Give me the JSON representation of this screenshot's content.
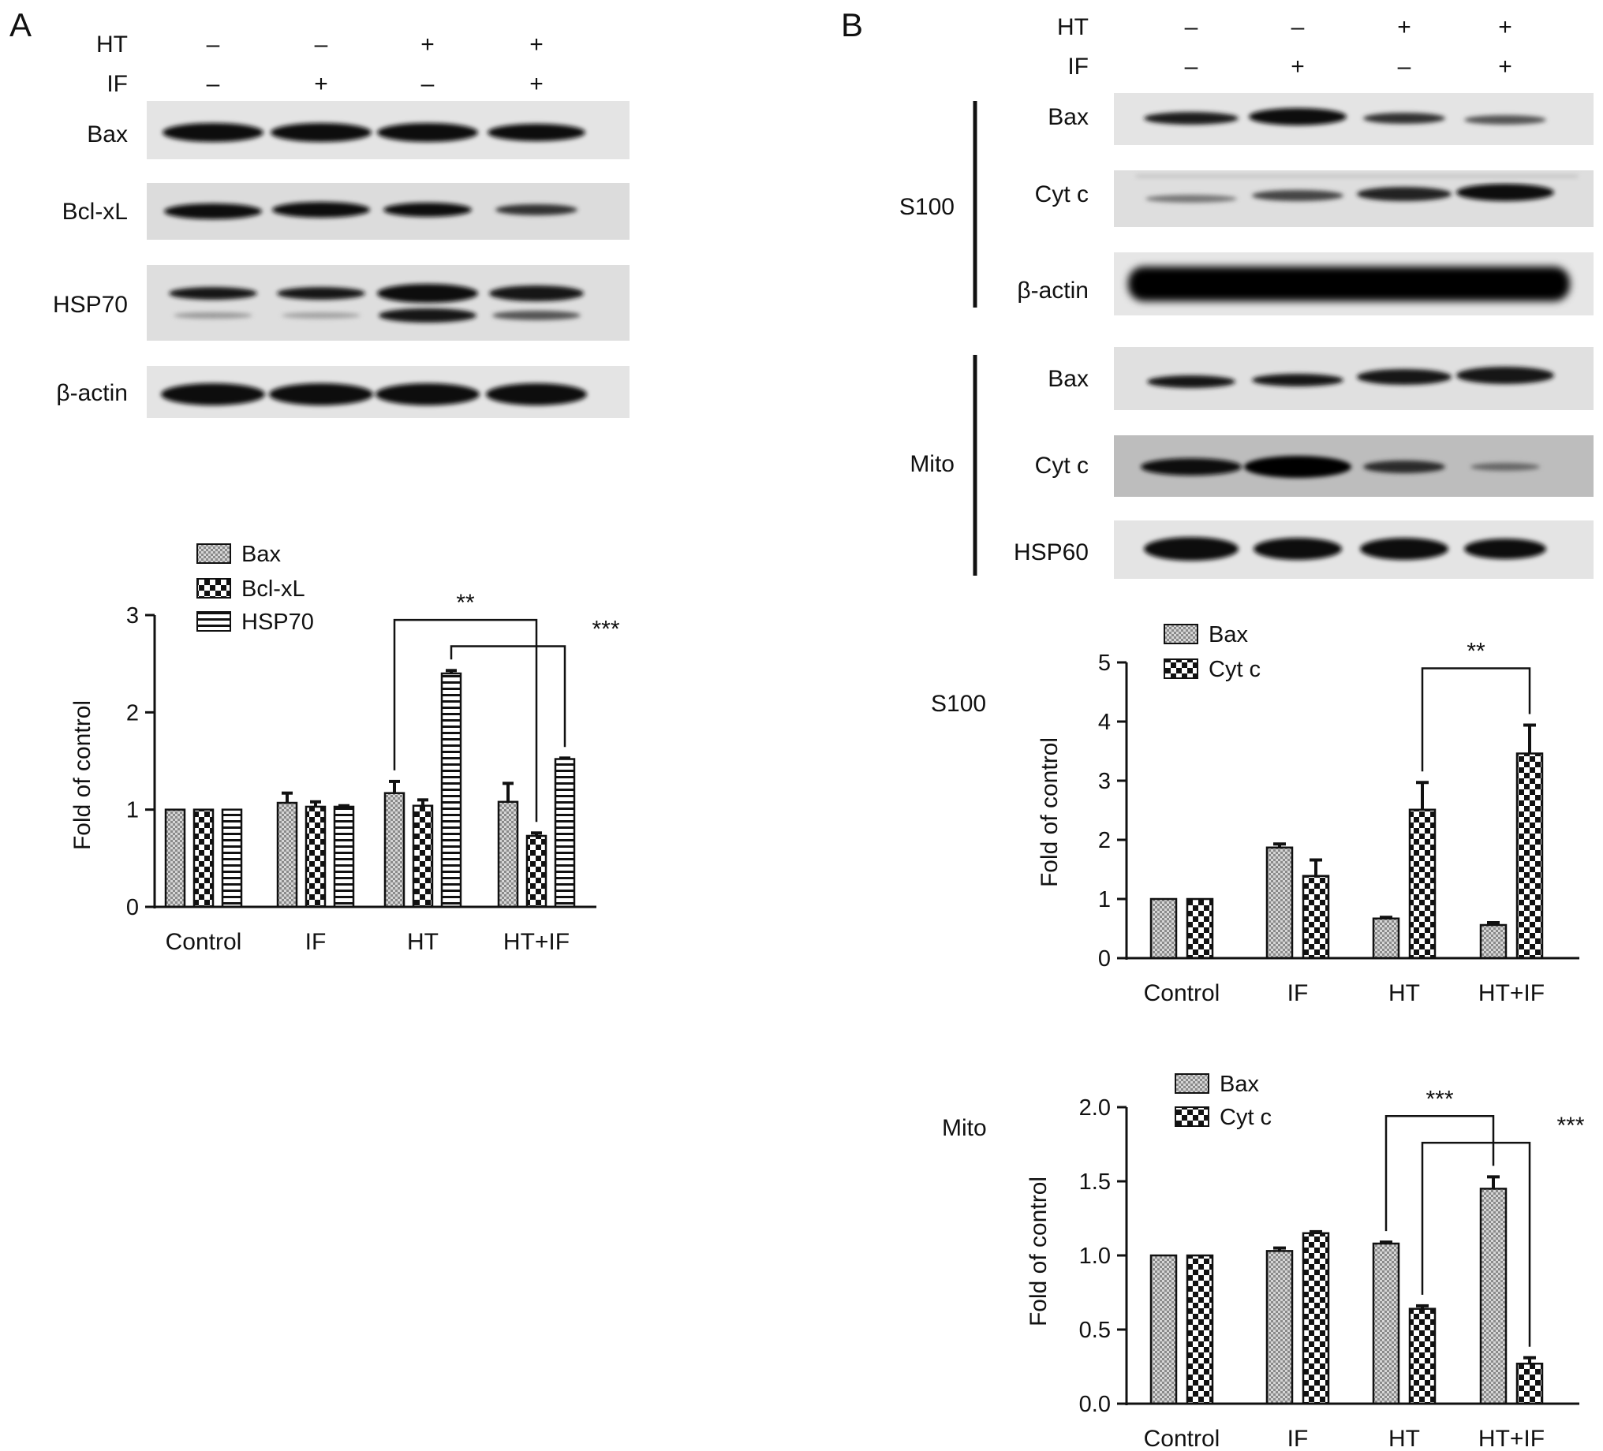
{
  "panel_a": {
    "letter": "A",
    "ht_label": "HT",
    "if_label": "IF",
    "ht_signs": [
      "–",
      "–",
      "+",
      "+"
    ],
    "if_signs": [
      "–",
      "+",
      "–",
      "+"
    ],
    "blot_labels": [
      "Bax",
      "Bcl-xL",
      "HSP70",
      "β-actin"
    ]
  },
  "panel_b": {
    "letter": "B",
    "ht_label": "HT",
    "if_label": "IF",
    "ht_signs": [
      "–",
      "–",
      "+",
      "+"
    ],
    "if_signs": [
      "–",
      "+",
      "–",
      "+"
    ],
    "s100_label": "S100",
    "mito_label": "Mito",
    "s100_blot_labels": [
      "Bax",
      "Cyt c",
      "β-actin"
    ],
    "mito_blot_labels": [
      "Bax",
      "Cyt c",
      "HSP60"
    ]
  },
  "colors": {
    "bar_fill": "#ffffff",
    "stroke": "#111111",
    "blot_bg": "#e2e2e2",
    "band": "#111111"
  },
  "chart_data": [
    {
      "id": "chartA",
      "type": "bar",
      "ylabel": "Fold of control",
      "ylim": [
        0,
        3
      ],
      "yticks": [
        "0",
        "1",
        "2",
        "3"
      ],
      "categories": [
        "Control",
        "IF",
        "HT",
        "HT+IF"
      ],
      "series": [
        {
          "name": "Bax",
          "pattern": "dots",
          "values": [
            1.0,
            1.07,
            1.17,
            1.08
          ],
          "errors": [
            0.0,
            0.1,
            0.12,
            0.19
          ]
        },
        {
          "name": "Bcl-xL",
          "pattern": "checks",
          "values": [
            1.0,
            1.03,
            1.04,
            0.73
          ],
          "errors": [
            0.0,
            0.05,
            0.06,
            0.03
          ]
        },
        {
          "name": "HSP70",
          "pattern": "hlines",
          "values": [
            1.0,
            1.03,
            2.4,
            1.52
          ],
          "errors": [
            0.0,
            0.01,
            0.03,
            0.01
          ]
        }
      ],
      "legend_position": "top-left",
      "significance": [
        {
          "label": "**",
          "from": [
            2,
            0
          ],
          "to": [
            3,
            1
          ]
        },
        {
          "label": "***",
          "from": [
            2,
            2
          ],
          "to": [
            3,
            2
          ]
        }
      ]
    },
    {
      "id": "chartS100",
      "type": "bar",
      "title": "S100",
      "ylabel": "Fold of control",
      "ylim": [
        0,
        5
      ],
      "yticks": [
        "0",
        "1",
        "2",
        "3",
        "4",
        "5"
      ],
      "categories": [
        "Control",
        "IF",
        "HT",
        "HT+IF"
      ],
      "series": [
        {
          "name": "Bax",
          "pattern": "dots",
          "values": [
            1.0,
            1.87,
            0.67,
            0.56
          ],
          "errors": [
            0.0,
            0.06,
            0.02,
            0.04
          ]
        },
        {
          "name": "Cyt c",
          "pattern": "checks",
          "values": [
            1.0,
            1.39,
            2.51,
            3.46
          ],
          "errors": [
            0.0,
            0.27,
            0.46,
            0.48
          ]
        }
      ],
      "legend_position": "top-left",
      "significance": [
        {
          "label": "**",
          "from": [
            2,
            1
          ],
          "to": [
            3,
            1
          ]
        }
      ]
    },
    {
      "id": "chartMito",
      "type": "bar",
      "title": "Mito",
      "ylabel": "Fold of control",
      "ylim": [
        0,
        2
      ],
      "yticks": [
        "0.0",
        "0.5",
        "1.0",
        "1.5",
        "2.0"
      ],
      "categories": [
        "Control",
        "IF",
        "HT",
        "HT+IF"
      ],
      "series": [
        {
          "name": "Bax",
          "pattern": "dots",
          "values": [
            1.0,
            1.03,
            1.08,
            1.45
          ],
          "errors": [
            0.0,
            0.02,
            0.01,
            0.08
          ]
        },
        {
          "name": "Cyt c",
          "pattern": "checks",
          "values": [
            1.0,
            1.15,
            0.64,
            0.27
          ],
          "errors": [
            0.0,
            0.01,
            0.02,
            0.04
          ]
        }
      ],
      "legend_position": "top-left",
      "significance": [
        {
          "label": "***",
          "from": [
            2,
            0
          ],
          "to": [
            3,
            0
          ]
        },
        {
          "label": "***",
          "from": [
            2,
            1
          ],
          "to": [
            3,
            1
          ]
        }
      ]
    }
  ]
}
